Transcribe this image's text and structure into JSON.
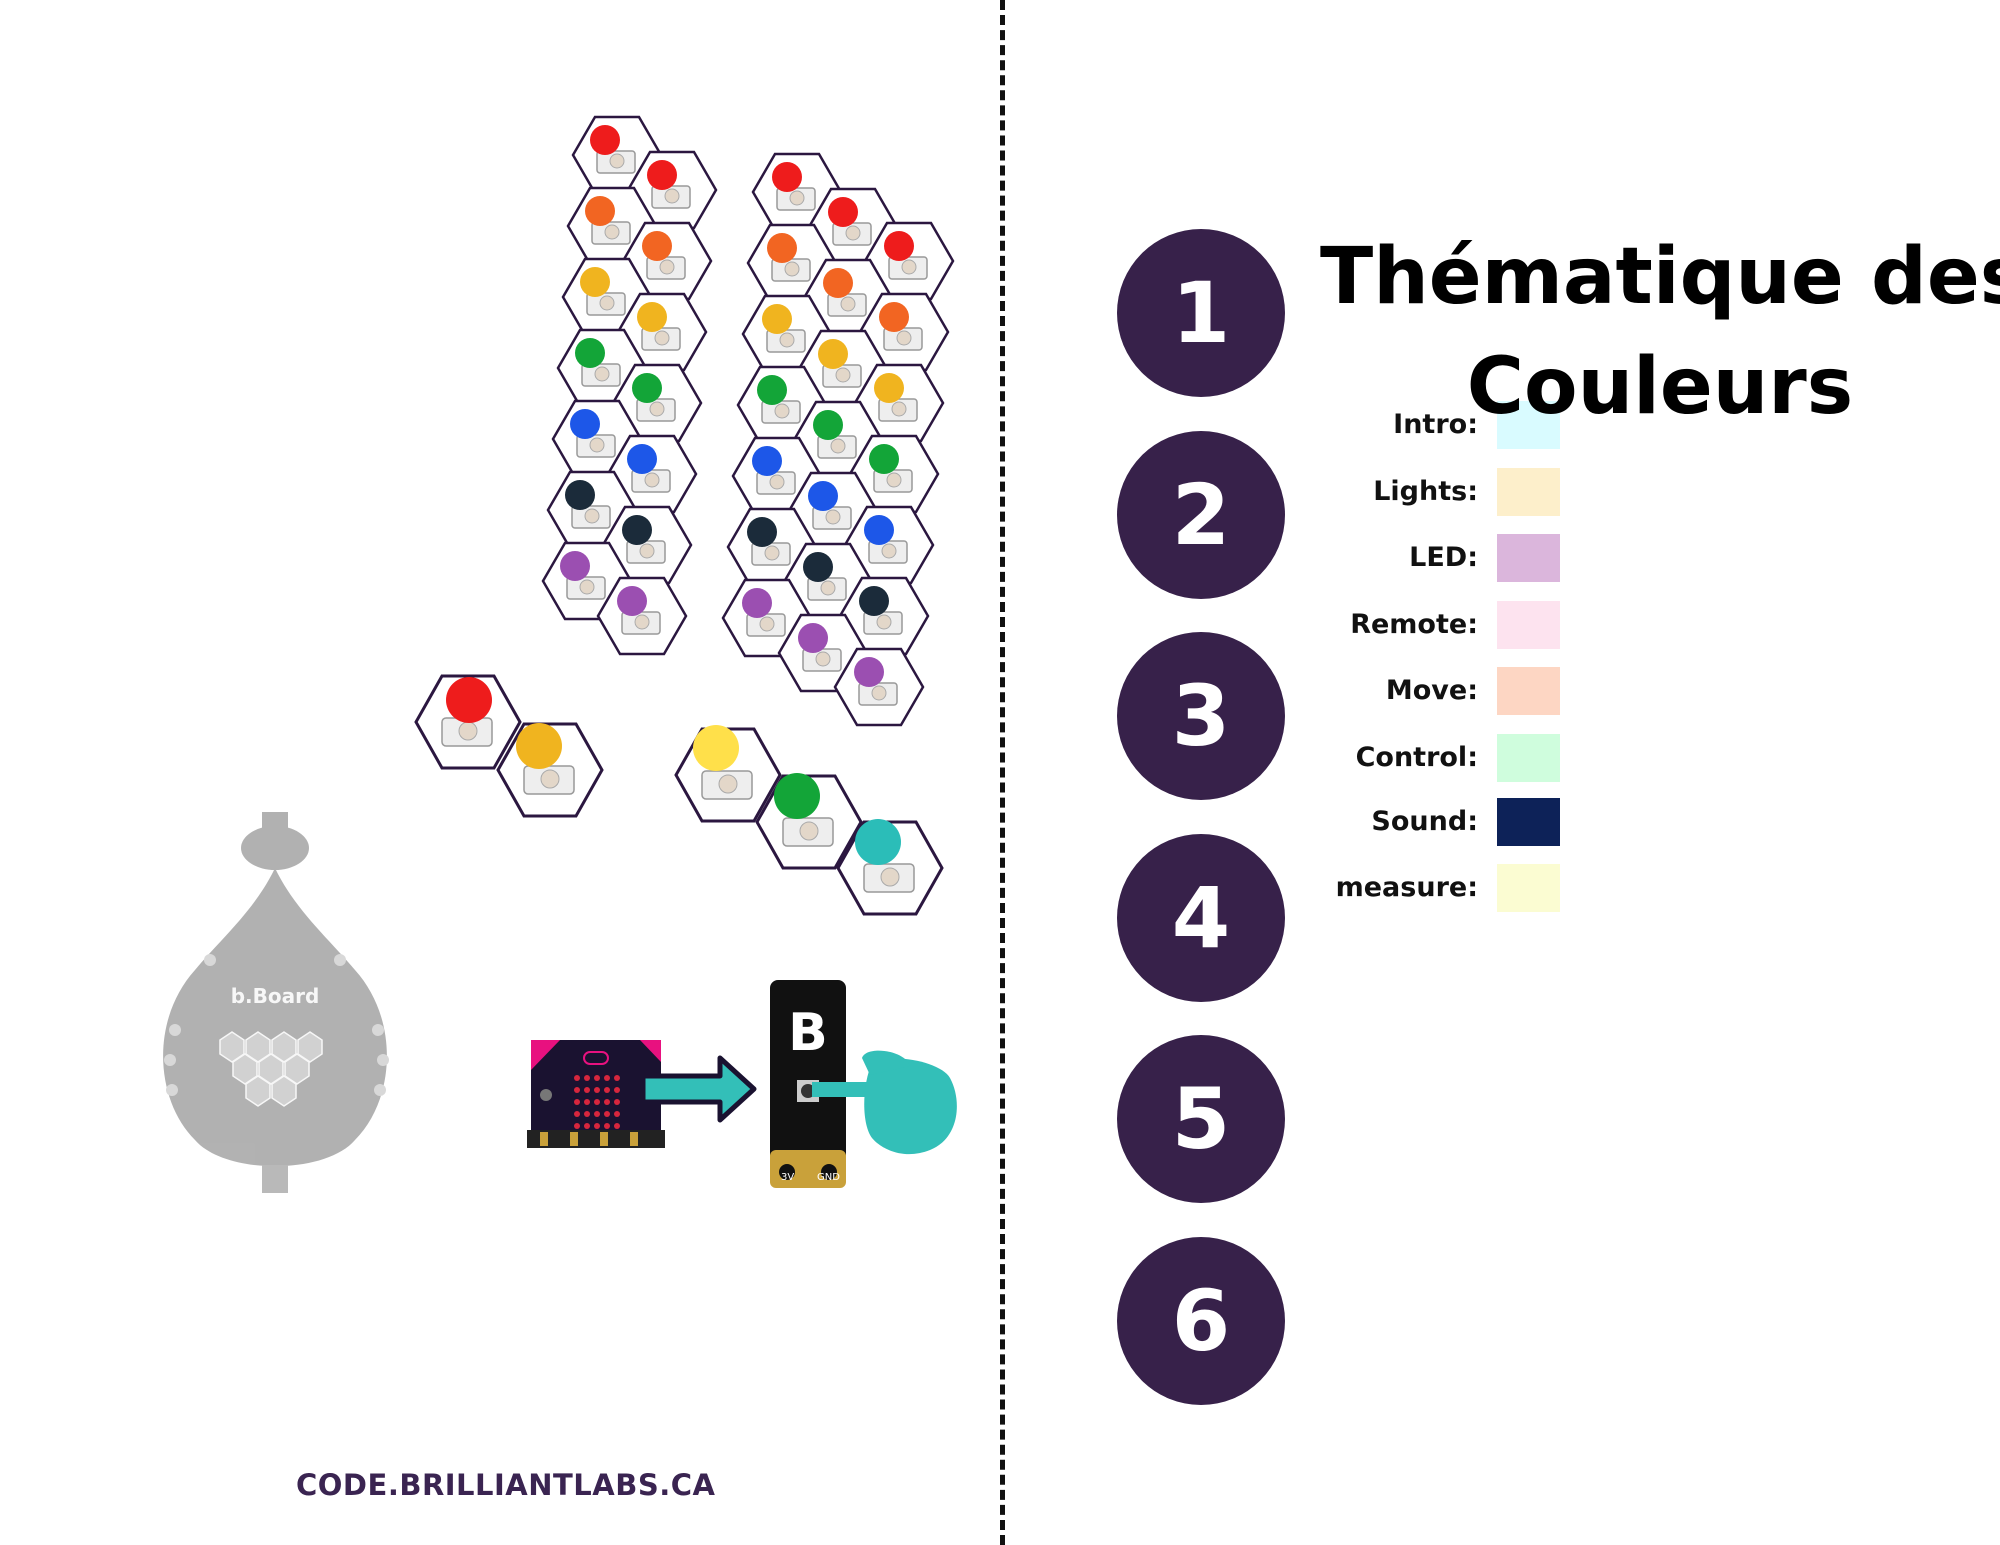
{
  "footer": {
    "url": "CODE.BRILLIANTLABS.CA"
  },
  "steps": [
    "1",
    "2",
    "3",
    "4",
    "5",
    "6"
  ],
  "title": {
    "line1": "Thématique des",
    "line2": "Couleurs"
  },
  "legend": [
    {
      "label": "Intro:",
      "color": "#d9fbff"
    },
    {
      "label": "Lights:",
      "color": "#fdefcb"
    },
    {
      "label": "LED:",
      "color": "#dbb6dc"
    },
    {
      "label": "Remote:",
      "color": "#fde3ef"
    },
    {
      "label": "Move:",
      "color": "#fdd6c3"
    },
    {
      "label": "Control:",
      "color": "#cffddd"
    },
    {
      "label": "Sound:",
      "color": "#0d2258"
    },
    {
      "label": "measure:",
      "color": "#fbfcd2"
    }
  ],
  "illustration": {
    "board_label": "b.Board",
    "button_letter": "B",
    "pin_labels": [
      "3V",
      "GND"
    ],
    "led_colors": {
      "red": "#ee1c1c",
      "orange": "#f26522",
      "yellow": "#f0b41f",
      "green": "#13a538",
      "blue": "#1d57e8",
      "dark": "#1b2b3a",
      "purple": "#9b4fb1",
      "light_yellow": "#ffe04a",
      "teal": "#2bbdb8"
    },
    "outline_color": "#2b1740",
    "hand_color": "#33bfb8"
  }
}
